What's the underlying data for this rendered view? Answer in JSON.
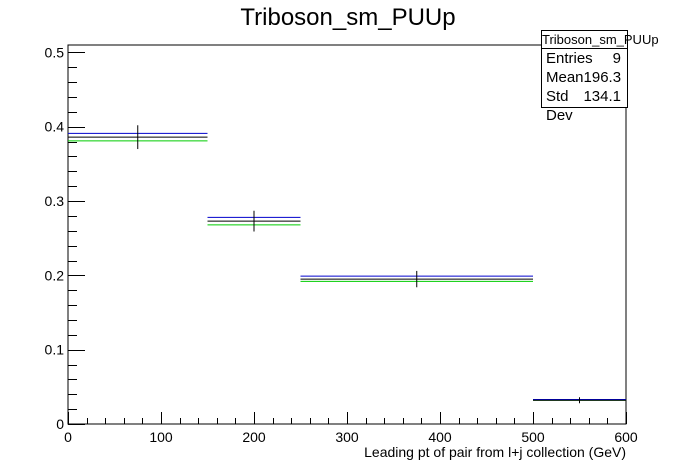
{
  "chart_data": {
    "type": "line",
    "title": "Triboson_sm_PUUp",
    "xlabel": "Leading pt of pair from l+j collection (GeV)",
    "ylabel": "",
    "xlim": [
      0,
      600
    ],
    "ylim": [
      0,
      0.51
    ],
    "x_ticks": [
      "0",
      "100",
      "200",
      "300",
      "400",
      "500",
      "600"
    ],
    "y_ticks": [
      "0",
      "0.1",
      "0.2",
      "0.3",
      "0.4",
      "0.5"
    ],
    "grid": false,
    "bin_edges": [
      0,
      150,
      250,
      500,
      600
    ],
    "series": [
      {
        "color": "#000000",
        "values": [
          0.386,
          0.273,
          0.195,
          0.032
        ],
        "errors": [
          0.016,
          0.014,
          0.011,
          0.004
        ]
      },
      {
        "color": "#0000cc",
        "values": [
          0.391,
          0.278,
          0.199,
          0.033
        ]
      },
      {
        "color": "#00cc00",
        "values": [
          0.381,
          0.268,
          0.192,
          0.032
        ]
      }
    ],
    "stats_box": {
      "title": "Triboson_sm_PUUp",
      "rows": [
        {
          "label": "Entries",
          "value": "9"
        },
        {
          "label": "Mean",
          "value": "196.3"
        },
        {
          "label": "Std Dev",
          "value": "134.1"
        }
      ]
    }
  }
}
